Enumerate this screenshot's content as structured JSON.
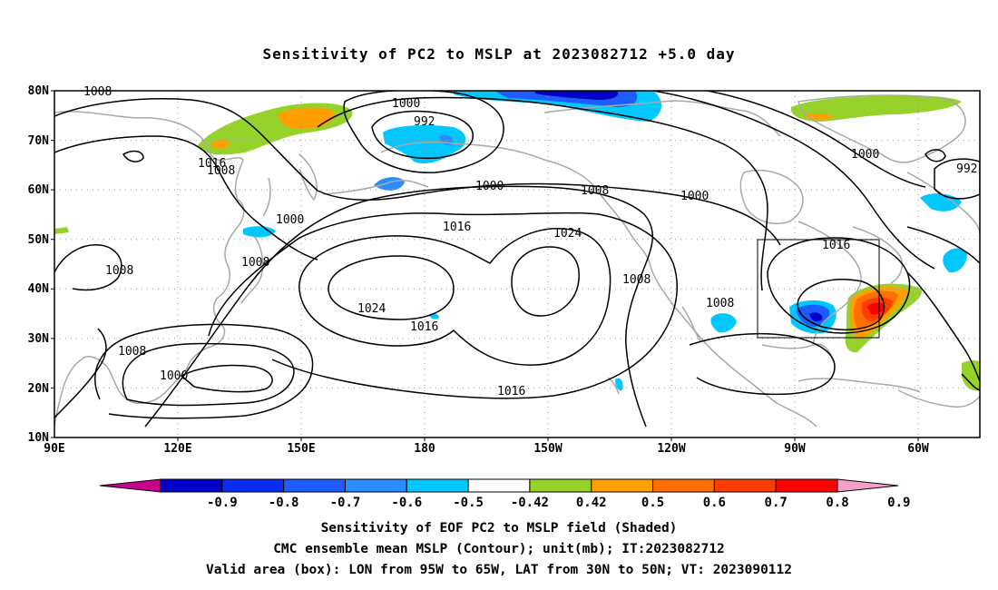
{
  "title": "Sensitivity of PC2 to MSLP at 2023082712 +5.0 day",
  "map": {
    "lat_labels": [
      "80N",
      "70N",
      "60N",
      "50N",
      "40N",
      "30N",
      "20N",
      "10N"
    ],
    "lon_labels": [
      "90E",
      "120E",
      "150E",
      "180",
      "150W",
      "120W",
      "90W",
      "60W"
    ],
    "contour_labels": [
      "1008",
      "1000",
      "992",
      "1000",
      "992",
      "1016",
      "1008",
      "1000",
      "1000",
      "1008",
      "1000",
      "1016",
      "1024",
      "1008",
      "1008",
      "1024",
      "1016",
      "1008",
      "1008",
      "1016",
      "1008",
      "1000",
      "1016"
    ],
    "valid_box": {
      "lon_from": "95W",
      "lon_to": "65W",
      "lat_from": "30N",
      "lat_to": "50N"
    }
  },
  "colorbar": {
    "ticks": [
      "-0.9",
      "-0.8",
      "-0.7",
      "-0.6",
      "-0.5",
      "-0.42",
      "0.42",
      "0.5",
      "0.6",
      "0.7",
      "0.8",
      "0.9"
    ],
    "colors": [
      "#c8008c",
      "#0000c8",
      "#0a2ef0",
      "#1e5cff",
      "#2a8cff",
      "#00c8ff",
      "#ffffff",
      "#96d22a",
      "#ffa000",
      "#ff6e00",
      "#ff3c00",
      "#ff0000",
      "#f5a0c8"
    ]
  },
  "captions": {
    "line1": "Sensitivity of EOF PC2 to MSLP field (Shaded)",
    "line2": "CMC ensemble mean MSLP (Contour); unit(mb); IT:2023082712",
    "line3": "Valid area (box): LON from 95W to 65W, LAT from 30N to 50N; VT: 2023090112"
  }
}
